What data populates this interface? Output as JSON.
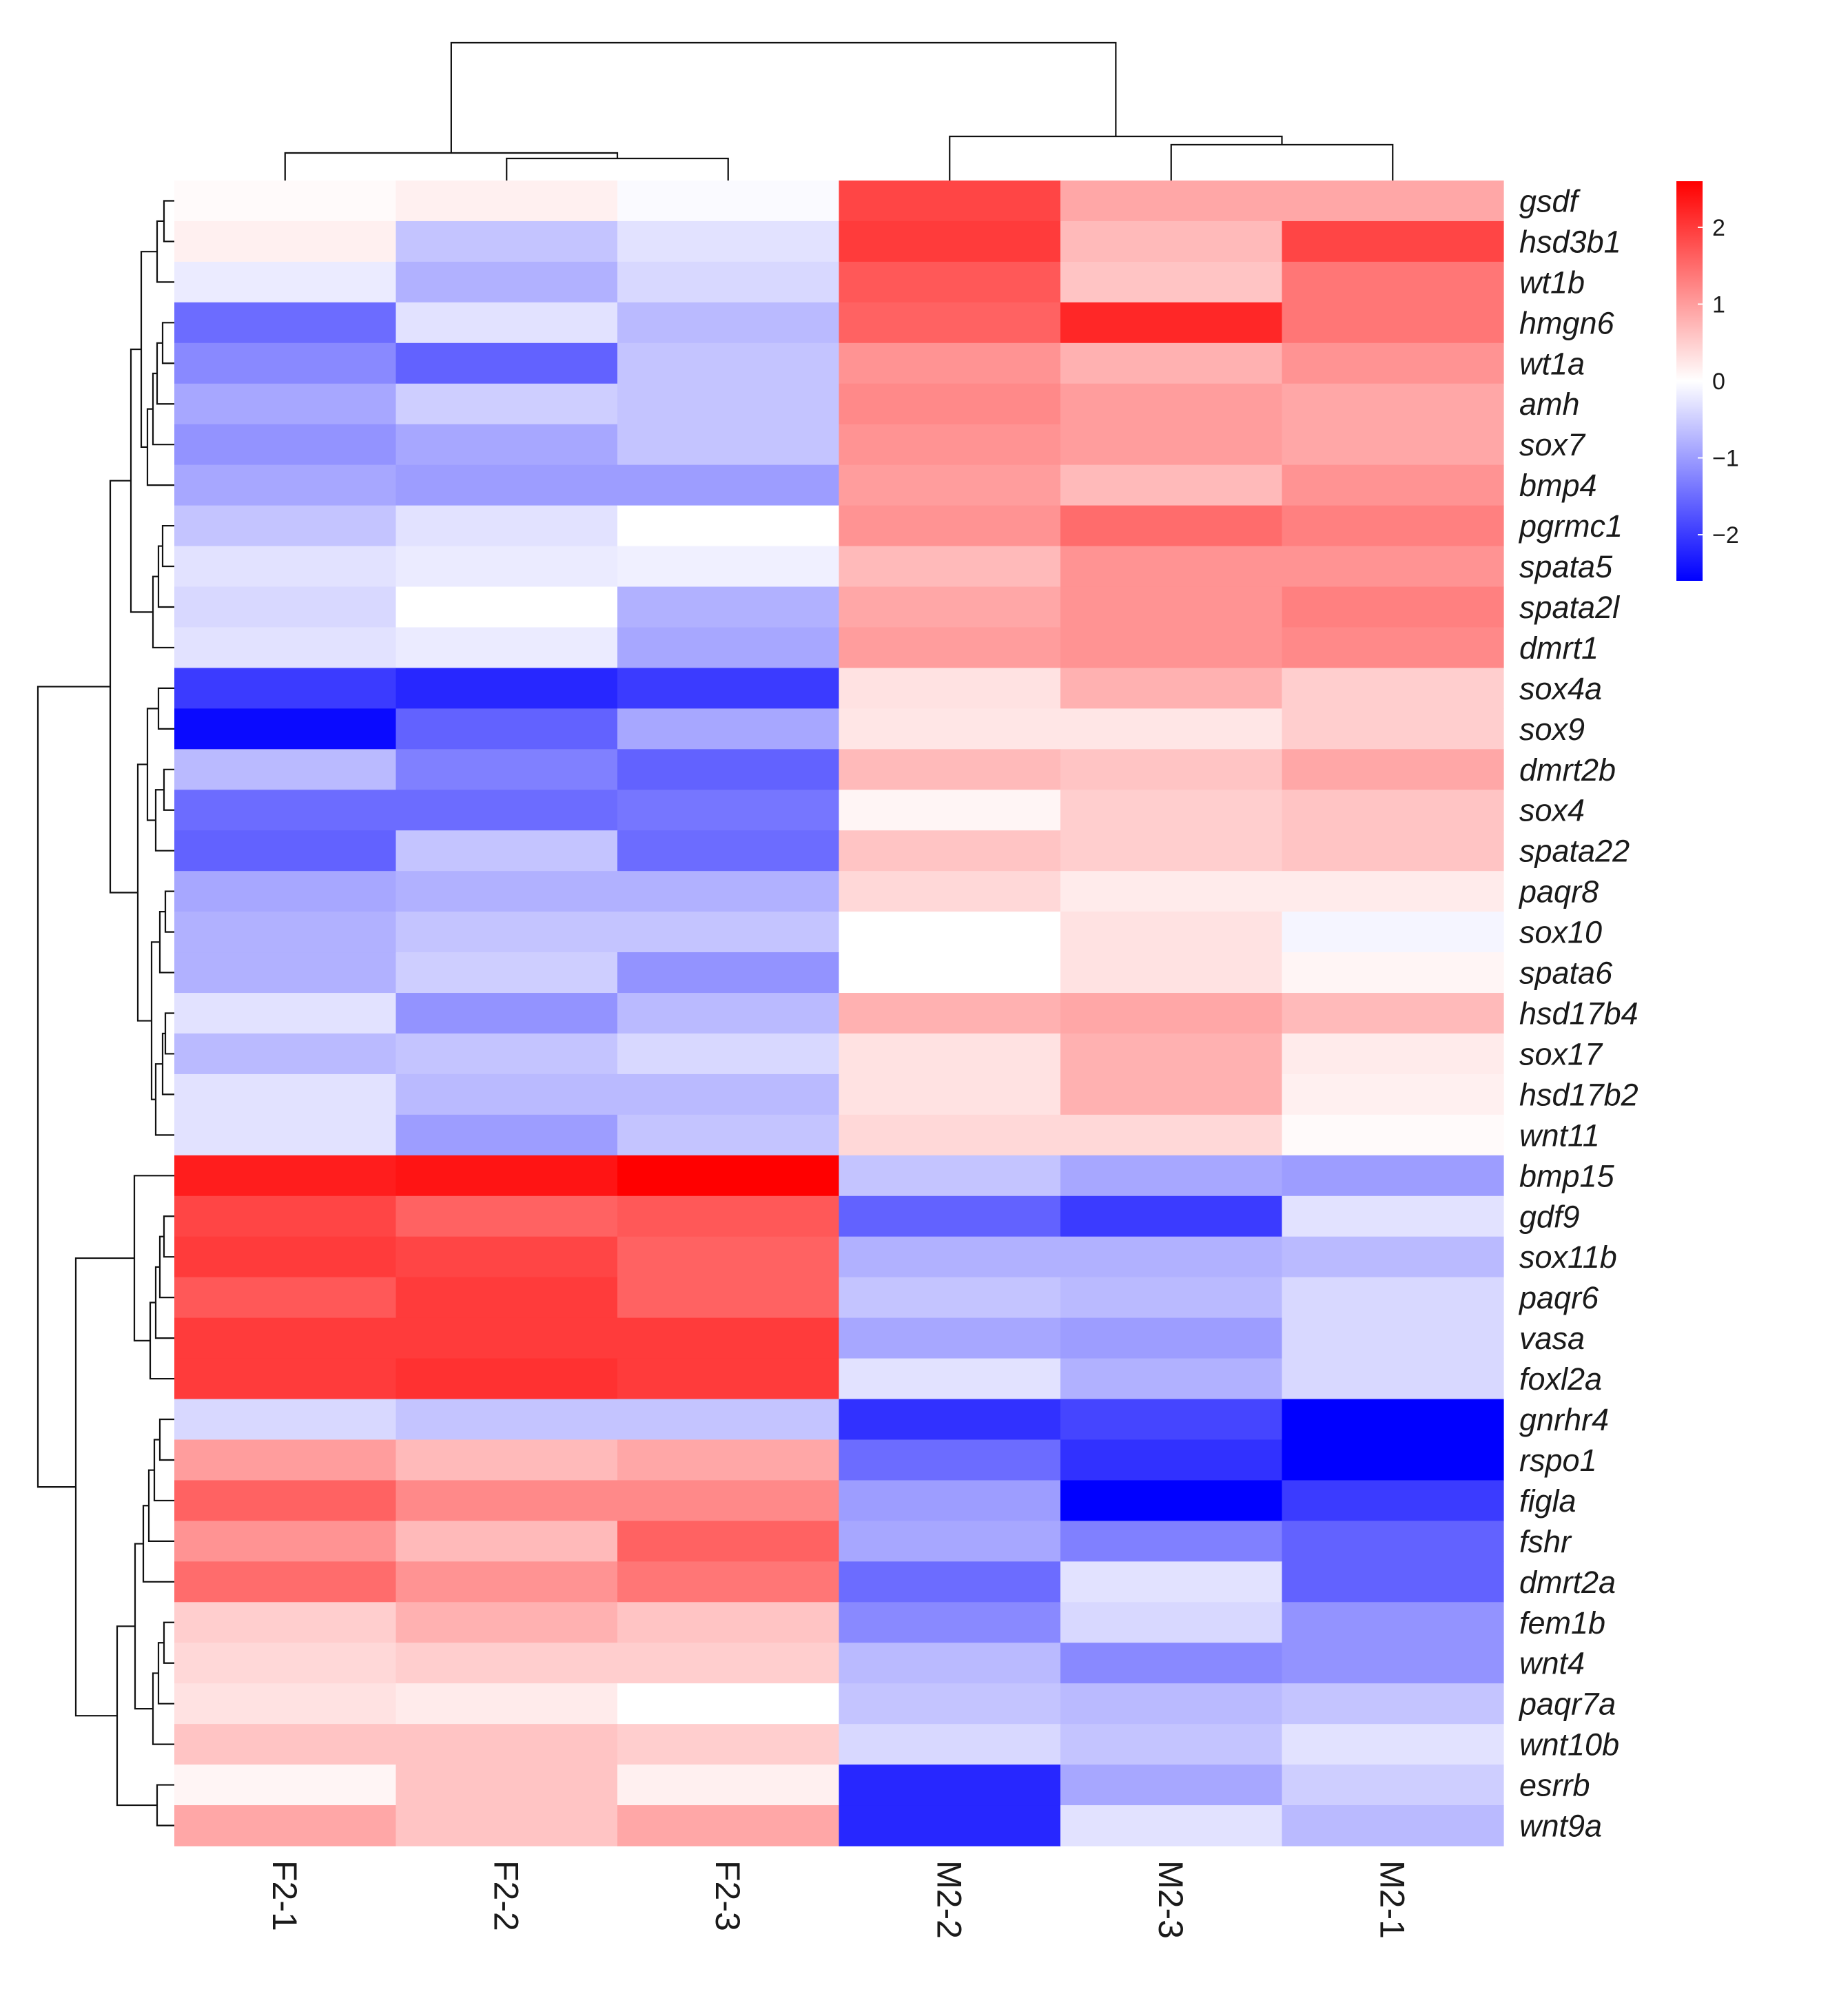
{
  "chart_data": {
    "type": "heatmap",
    "title": "",
    "columns": [
      "F2-1",
      "F2-2",
      "F2-3",
      "M2-2",
      "M2-3",
      "M2-1"
    ],
    "rows": [
      {
        "gene": "gsdf",
        "values": [
          0.05,
          0.15,
          -0.05,
          1.9,
          0.9,
          0.9
        ]
      },
      {
        "gene": "hsd3b1",
        "values": [
          0.15,
          -0.6,
          -0.3,
          2.0,
          0.7,
          1.9
        ]
      },
      {
        "gene": "wt1b",
        "values": [
          -0.2,
          -0.8,
          -0.4,
          1.7,
          0.6,
          1.4
        ]
      },
      {
        "gene": "hmgn6",
        "values": [
          -1.5,
          -0.3,
          -0.7,
          1.6,
          2.2,
          1.4
        ]
      },
      {
        "gene": "wt1a",
        "values": [
          -1.2,
          -1.6,
          -0.6,
          1.1,
          0.8,
          1.1
        ]
      },
      {
        "gene": "amh",
        "values": [
          -0.9,
          -0.5,
          -0.6,
          1.2,
          1.0,
          0.9
        ]
      },
      {
        "gene": "sox7",
        "values": [
          -1.1,
          -0.9,
          -0.6,
          1.1,
          1.0,
          0.9
        ]
      },
      {
        "gene": "bmp4",
        "values": [
          -0.9,
          -1.0,
          -1.0,
          1.0,
          0.7,
          1.1
        ]
      },
      {
        "gene": "pgrmc1",
        "values": [
          -0.6,
          -0.3,
          0.0,
          1.1,
          1.5,
          1.3
        ]
      },
      {
        "gene": "spata5",
        "values": [
          -0.3,
          -0.2,
          -0.15,
          0.7,
          1.1,
          1.1
        ]
      },
      {
        "gene": "spata2l",
        "values": [
          -0.4,
          0.0,
          -0.8,
          0.9,
          1.1,
          1.3
        ]
      },
      {
        "gene": "dmrt1",
        "values": [
          -0.3,
          -0.2,
          -0.9,
          1.0,
          1.1,
          1.2
        ]
      },
      {
        "gene": "sox4a",
        "values": [
          -2.0,
          -2.2,
          -2.0,
          0.3,
          0.8,
          0.5
        ]
      },
      {
        "gene": "sox9",
        "values": [
          -2.5,
          -1.6,
          -0.9,
          0.25,
          0.25,
          0.5
        ]
      },
      {
        "gene": "dmrt2b",
        "values": [
          -0.7,
          -1.3,
          -1.6,
          0.7,
          0.6,
          0.9
        ]
      },
      {
        "gene": "sox4",
        "values": [
          -1.5,
          -1.5,
          -1.4,
          0.1,
          0.5,
          0.6
        ]
      },
      {
        "gene": "spata22",
        "values": [
          -1.6,
          -0.6,
          -1.5,
          0.6,
          0.5,
          0.6
        ]
      },
      {
        "gene": "paqr8",
        "values": [
          -0.9,
          -0.8,
          -0.8,
          0.4,
          0.2,
          0.2
        ]
      },
      {
        "gene": "sox10",
        "values": [
          -0.8,
          -0.6,
          -0.6,
          0.0,
          0.3,
          -0.1
        ]
      },
      {
        "gene": "spata6",
        "values": [
          -0.8,
          -0.5,
          -1.1,
          0.0,
          0.3,
          0.1
        ]
      },
      {
        "gene": "hsd17b4",
        "values": [
          -0.3,
          -1.1,
          -0.7,
          0.8,
          0.9,
          0.7
        ]
      },
      {
        "gene": "sox17",
        "values": [
          -0.7,
          -0.6,
          -0.4,
          0.3,
          0.8,
          0.2
        ]
      },
      {
        "gene": "hsd17b2",
        "values": [
          -0.3,
          -0.7,
          -0.7,
          0.3,
          0.8,
          0.15
        ]
      },
      {
        "gene": "wnt11",
        "values": [
          -0.3,
          -1.0,
          -0.6,
          0.4,
          0.4,
          0.05
        ]
      },
      {
        "gene": "bmp15",
        "values": [
          2.3,
          2.4,
          2.6,
          -0.6,
          -0.9,
          -1.0
        ]
      },
      {
        "gene": "gdf9",
        "values": [
          1.9,
          1.6,
          1.7,
          -1.6,
          -2.0,
          -0.3
        ]
      },
      {
        "gene": "sox11b",
        "values": [
          2.0,
          1.9,
          1.6,
          -0.8,
          -0.8,
          -0.7
        ]
      },
      {
        "gene": "paqr6",
        "values": [
          1.7,
          2.0,
          1.6,
          -0.6,
          -0.7,
          -0.4
        ]
      },
      {
        "gene": "vasa",
        "values": [
          2.0,
          2.0,
          2.0,
          -0.9,
          -1.0,
          -0.4
        ]
      },
      {
        "gene": "foxl2a",
        "values": [
          2.0,
          2.1,
          2.0,
          -0.3,
          -0.8,
          -0.4
        ]
      },
      {
        "gene": "gnrhr4",
        "values": [
          -0.4,
          -0.6,
          -0.6,
          -2.1,
          -1.9,
          -2.6
        ]
      },
      {
        "gene": "rspo1",
        "values": [
          1.0,
          0.7,
          0.9,
          -1.5,
          -2.1,
          -2.6
        ]
      },
      {
        "gene": "figla",
        "values": [
          1.6,
          1.2,
          1.2,
          -1.0,
          -2.6,
          -2.0
        ]
      },
      {
        "gene": "fshr",
        "values": [
          1.1,
          0.7,
          1.6,
          -0.9,
          -1.3,
          -1.6
        ]
      },
      {
        "gene": "dmrt2a",
        "values": [
          1.5,
          1.1,
          1.4,
          -1.5,
          -0.3,
          -1.6
        ]
      },
      {
        "gene": "fem1b",
        "values": [
          0.5,
          0.8,
          0.6,
          -1.2,
          -0.4,
          -1.1
        ]
      },
      {
        "gene": "wnt4",
        "values": [
          0.4,
          0.5,
          0.5,
          -0.7,
          -1.2,
          -1.1
        ]
      },
      {
        "gene": "paqr7a",
        "values": [
          0.3,
          0.2,
          0.0,
          -0.6,
          -0.7,
          -0.6
        ]
      },
      {
        "gene": "wnt10b",
        "values": [
          0.6,
          0.6,
          0.5,
          -0.4,
          -0.6,
          -0.3
        ]
      },
      {
        "gene": "esrrb",
        "values": [
          0.1,
          0.6,
          0.15,
          -2.2,
          -0.9,
          -0.5
        ]
      },
      {
        "gene": "wnt9a",
        "values": [
          0.9,
          0.6,
          0.9,
          -2.2,
          -0.3,
          -0.7
        ]
      }
    ],
    "color_scale": {
      "min": -2.6,
      "mid": 0,
      "max": 2.6,
      "low_color": "#0000ff",
      "mid_color": "#ffffff",
      "high_color": "#ff0000",
      "ticks": [
        2,
        1,
        0,
        -1,
        -2
      ],
      "tick_labels": [
        "2",
        "1",
        "0",
        "−1",
        "−2"
      ]
    },
    "legend_position": "top-right",
    "row_dendrogram": true,
    "column_dendrogram": true
  }
}
